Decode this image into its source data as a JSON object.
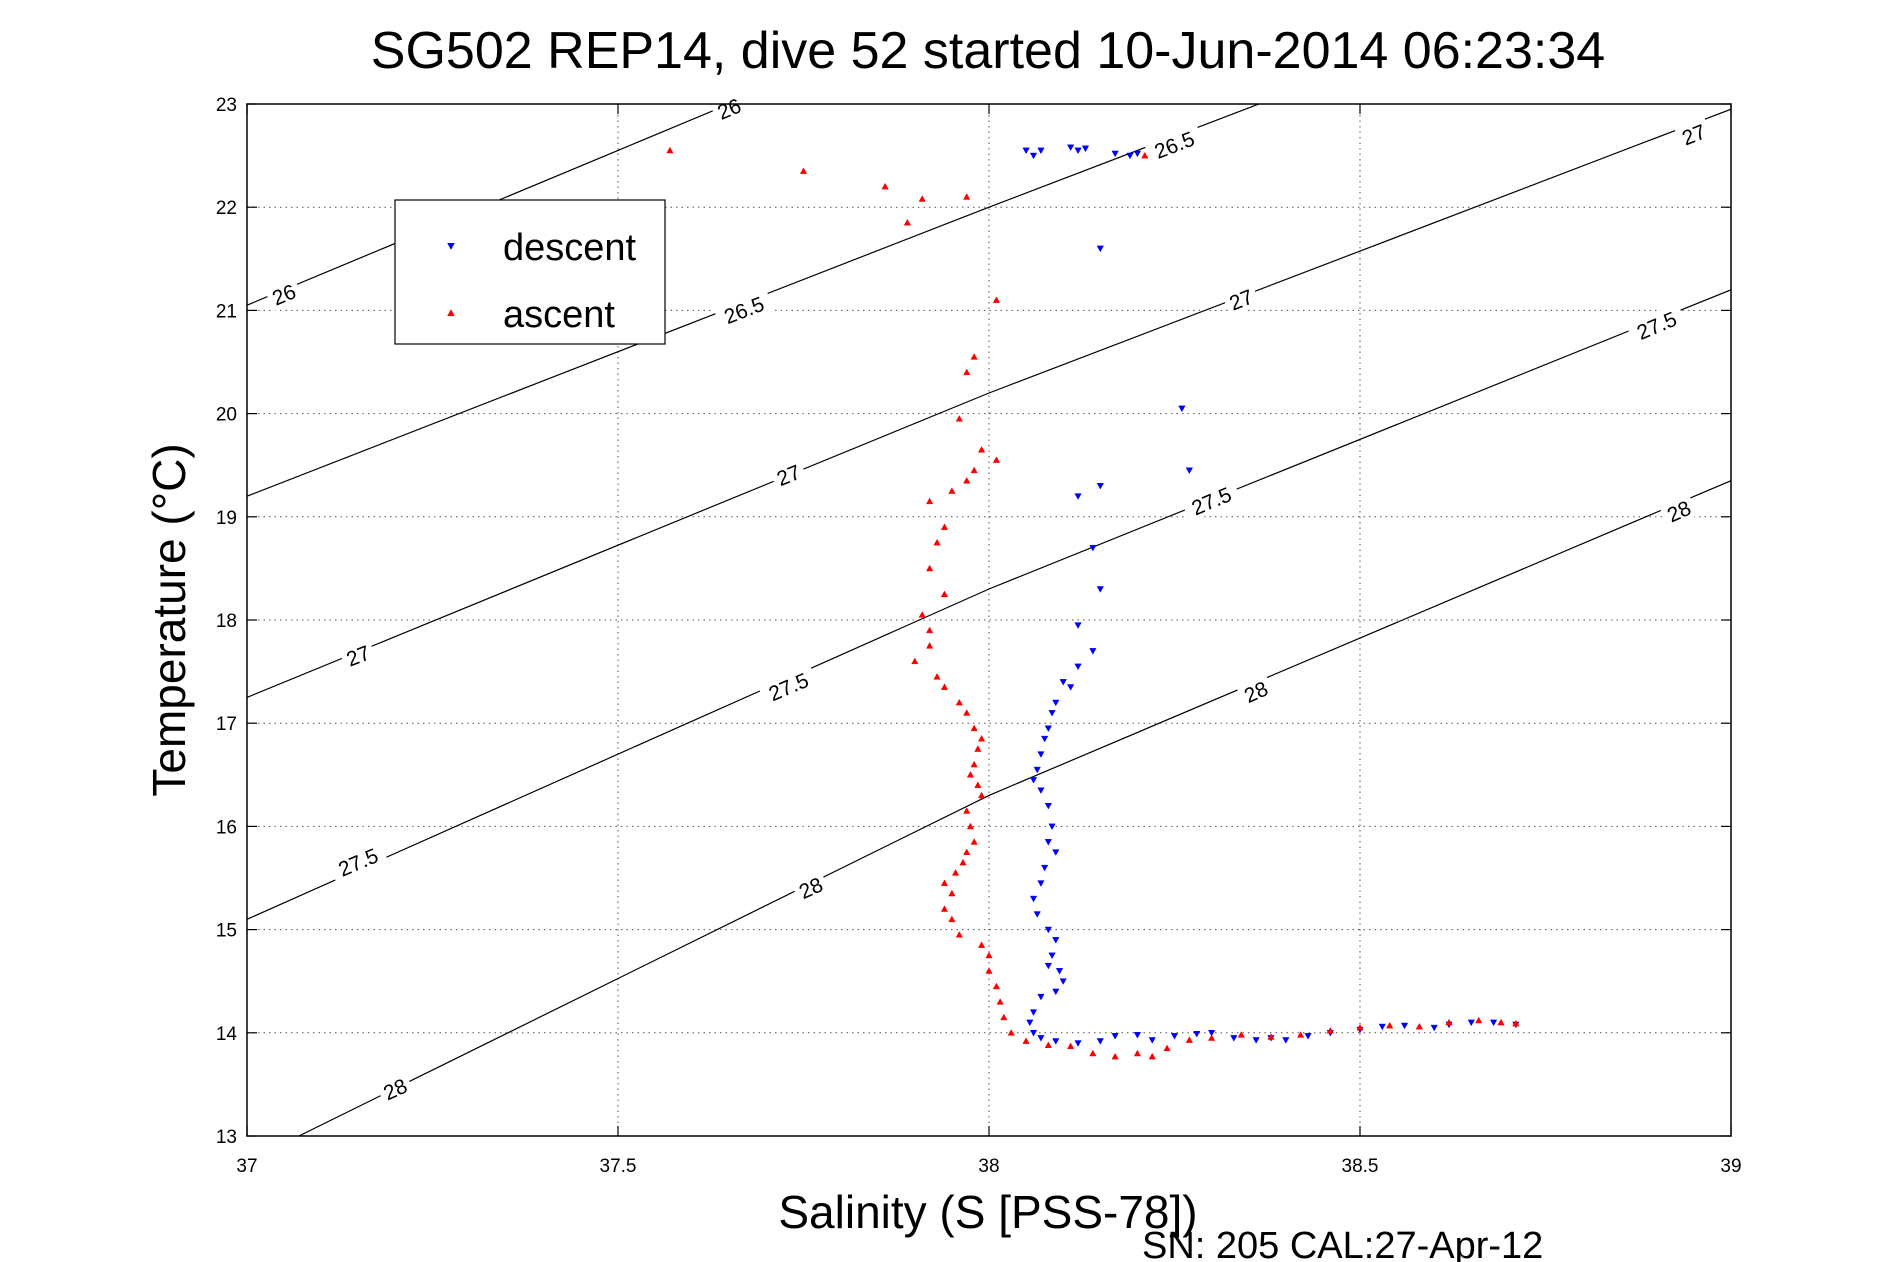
{
  "chart_data": {
    "type": "scatter",
    "title": "SG502 REP14, dive 52 started 10-Jun-2014 06:23:34",
    "xlabel": "Salinity (S [PSS-78])",
    "ylabel": "Temperature (°C)",
    "xlim": [
      37,
      39
    ],
    "ylim": [
      13,
      23
    ],
    "x_ticks": [
      37,
      37.5,
      38,
      38.5,
      39
    ],
    "x_tick_labels": [
      "37",
      "37.5",
      "38",
      "38.5",
      "39"
    ],
    "y_ticks": [
      13,
      14,
      15,
      16,
      17,
      18,
      19,
      20,
      21,
      22,
      23
    ],
    "y_tick_labels": [
      "13",
      "14",
      "15",
      "16",
      "17",
      "18",
      "19",
      "20",
      "21",
      "22",
      "23"
    ],
    "grid": true,
    "legend_position": "upper-left",
    "footer": "SN: 205  CAL:27-Apr-12",
    "colors": {
      "descent": "#0000ff",
      "ascent": "#ff0000",
      "contour": "#000000"
    },
    "density_contours": [
      {
        "level": "26",
        "points": [
          [
            37.0,
            21.05
          ],
          [
            37.5,
            22.55
          ],
          [
            37.75,
            23.3
          ]
        ],
        "labels": [
          [
            37.05,
            21.15
          ],
          [
            37.65,
            22.95
          ]
        ]
      },
      {
        "level": "26.5",
        "points": [
          [
            37.0,
            19.2
          ],
          [
            38.0,
            22.0
          ],
          [
            38.4,
            23.1
          ]
        ],
        "labels": [
          [
            37.67,
            21.0
          ],
          [
            38.25,
            22.6
          ]
        ]
      },
      {
        "level": "27",
        "points": [
          [
            37.0,
            17.25
          ],
          [
            38.0,
            20.2
          ],
          [
            39.0,
            22.95
          ]
        ],
        "labels": [
          [
            37.15,
            17.65
          ],
          [
            37.73,
            19.4
          ],
          [
            38.34,
            21.1
          ],
          [
            38.95,
            22.7
          ]
        ]
      },
      {
        "level": "27.5",
        "points": [
          [
            37.0,
            15.1
          ],
          [
            38.0,
            18.3
          ],
          [
            39.0,
            21.2
          ]
        ],
        "labels": [
          [
            37.15,
            15.65
          ],
          [
            37.73,
            17.35
          ],
          [
            38.3,
            19.15
          ],
          [
            38.9,
            20.85
          ]
        ]
      },
      {
        "level": "28",
        "points": [
          [
            37.07,
            13.0
          ],
          [
            38.0,
            16.3
          ],
          [
            39.0,
            19.35
          ]
        ],
        "labels": [
          [
            37.2,
            13.45
          ],
          [
            37.76,
            15.4
          ],
          [
            38.36,
            17.3
          ],
          [
            38.93,
            19.05
          ]
        ]
      }
    ],
    "series": [
      {
        "name": "descent",
        "marker": "triangle-down",
        "points": [
          [
            38.05,
            22.55
          ],
          [
            38.06,
            22.5
          ],
          [
            38.07,
            22.55
          ],
          [
            38.11,
            22.58
          ],
          [
            38.12,
            22.55
          ],
          [
            38.13,
            22.57
          ],
          [
            38.17,
            22.52
          ],
          [
            38.19,
            22.5
          ],
          [
            38.2,
            22.52
          ],
          [
            38.15,
            21.6
          ],
          [
            38.26,
            20.05
          ],
          [
            38.27,
            19.45
          ],
          [
            38.15,
            19.3
          ],
          [
            38.12,
            19.2
          ],
          [
            38.14,
            18.7
          ],
          [
            38.15,
            18.3
          ],
          [
            38.12,
            17.95
          ],
          [
            38.14,
            17.7
          ],
          [
            38.12,
            17.55
          ],
          [
            38.1,
            17.4
          ],
          [
            38.11,
            17.35
          ],
          [
            38.09,
            17.2
          ],
          [
            38.085,
            17.1
          ],
          [
            38.08,
            16.95
          ],
          [
            38.075,
            16.85
          ],
          [
            38.07,
            16.7
          ],
          [
            38.065,
            16.55
          ],
          [
            38.06,
            16.45
          ],
          [
            38.07,
            16.35
          ],
          [
            38.08,
            16.2
          ],
          [
            38.085,
            16.0
          ],
          [
            38.08,
            15.85
          ],
          [
            38.09,
            15.75
          ],
          [
            38.075,
            15.6
          ],
          [
            38.07,
            15.45
          ],
          [
            38.06,
            15.3
          ],
          [
            38.065,
            15.15
          ],
          [
            38.08,
            15.0
          ],
          [
            38.09,
            14.9
          ],
          [
            38.085,
            14.75
          ],
          [
            38.08,
            14.65
          ],
          [
            38.095,
            14.6
          ],
          [
            38.1,
            14.5
          ],
          [
            38.09,
            14.4
          ],
          [
            38.07,
            14.35
          ],
          [
            38.06,
            14.2
          ],
          [
            38.055,
            14.1
          ],
          [
            38.06,
            14.0
          ],
          [
            38.07,
            13.95
          ],
          [
            38.09,
            13.92
          ],
          [
            38.12,
            13.9
          ],
          [
            38.15,
            13.92
          ],
          [
            38.17,
            13.97
          ],
          [
            38.2,
            13.98
          ],
          [
            38.22,
            13.93
          ],
          [
            38.25,
            13.97
          ],
          [
            38.28,
            13.99
          ],
          [
            38.3,
            14.0
          ],
          [
            38.33,
            13.95
          ],
          [
            38.36,
            13.93
          ],
          [
            38.38,
            13.95
          ],
          [
            38.4,
            13.93
          ],
          [
            38.43,
            13.97
          ],
          [
            38.46,
            14.0
          ],
          [
            38.5,
            14.03
          ],
          [
            38.53,
            14.06
          ],
          [
            38.56,
            14.07
          ],
          [
            38.6,
            14.05
          ],
          [
            38.62,
            14.08
          ],
          [
            38.65,
            14.1
          ],
          [
            38.68,
            14.1
          ],
          [
            38.71,
            14.08
          ]
        ]
      },
      {
        "name": "ascent",
        "marker": "triangle-up",
        "points": [
          [
            37.57,
            22.55
          ],
          [
            37.75,
            22.35
          ],
          [
            37.86,
            22.2
          ],
          [
            37.91,
            22.08
          ],
          [
            37.97,
            22.1
          ],
          [
            37.89,
            21.85
          ],
          [
            38.21,
            22.5
          ],
          [
            38.01,
            21.1
          ],
          [
            37.98,
            20.55
          ],
          [
            37.97,
            20.4
          ],
          [
            37.96,
            19.95
          ],
          [
            37.99,
            19.65
          ],
          [
            38.01,
            19.55
          ],
          [
            37.98,
            19.45
          ],
          [
            37.97,
            19.35
          ],
          [
            37.95,
            19.25
          ],
          [
            37.92,
            19.15
          ],
          [
            37.94,
            18.9
          ],
          [
            37.93,
            18.75
          ],
          [
            37.92,
            18.5
          ],
          [
            37.94,
            18.25
          ],
          [
            37.91,
            18.05
          ],
          [
            37.92,
            17.9
          ],
          [
            37.92,
            17.75
          ],
          [
            37.9,
            17.6
          ],
          [
            37.93,
            17.45
          ],
          [
            37.94,
            17.35
          ],
          [
            37.96,
            17.2
          ],
          [
            37.97,
            17.1
          ],
          [
            37.98,
            16.95
          ],
          [
            37.99,
            16.85
          ],
          [
            37.985,
            16.75
          ],
          [
            37.98,
            16.6
          ],
          [
            37.975,
            16.5
          ],
          [
            37.985,
            16.4
          ],
          [
            37.99,
            16.3
          ],
          [
            37.97,
            16.15
          ],
          [
            37.975,
            16.0
          ],
          [
            37.98,
            15.85
          ],
          [
            37.97,
            15.75
          ],
          [
            37.965,
            15.65
          ],
          [
            37.955,
            15.55
          ],
          [
            37.94,
            15.45
          ],
          [
            37.95,
            15.35
          ],
          [
            37.94,
            15.2
          ],
          [
            37.95,
            15.1
          ],
          [
            37.96,
            14.95
          ],
          [
            37.99,
            14.85
          ],
          [
            38.0,
            14.75
          ],
          [
            38.0,
            14.6
          ],
          [
            38.01,
            14.45
          ],
          [
            38.015,
            14.3
          ],
          [
            38.02,
            14.15
          ],
          [
            38.03,
            14.0
          ],
          [
            38.05,
            13.92
          ],
          [
            38.08,
            13.88
          ],
          [
            38.11,
            13.87
          ],
          [
            38.14,
            13.8
          ],
          [
            38.17,
            13.77
          ],
          [
            38.2,
            13.8
          ],
          [
            38.22,
            13.77
          ],
          [
            38.24,
            13.85
          ],
          [
            38.27,
            13.93
          ],
          [
            38.3,
            13.95
          ],
          [
            38.34,
            13.98
          ],
          [
            38.38,
            13.96
          ],
          [
            38.42,
            13.98
          ],
          [
            38.46,
            14.02
          ],
          [
            38.5,
            14.05
          ],
          [
            38.54,
            14.07
          ],
          [
            38.58,
            14.06
          ],
          [
            38.62,
            14.1
          ],
          [
            38.66,
            14.12
          ],
          [
            38.69,
            14.1
          ],
          [
            38.71,
            14.09
          ]
        ]
      }
    ]
  }
}
